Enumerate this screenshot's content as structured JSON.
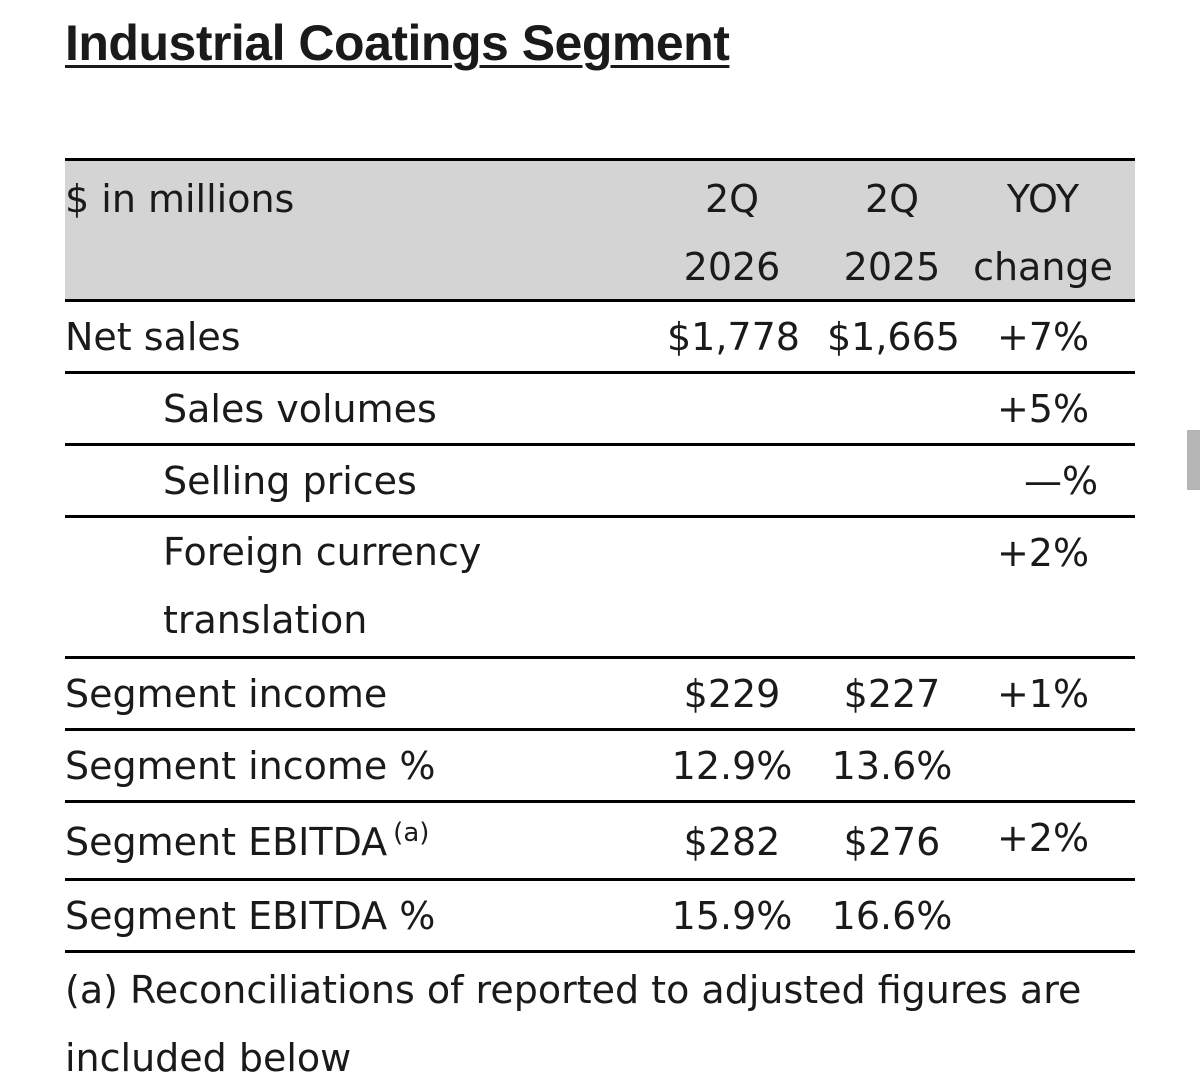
{
  "title": "Industrial Coatings Segment",
  "table": {
    "header": {
      "label": "$ in millions",
      "col1_line1": "2Q",
      "col1_line2": "2026",
      "col2_line1": "2Q",
      "col2_line2": "2025",
      "col3_line1": "YOY",
      "col3_line2": "change"
    },
    "rows": [
      {
        "label": "Net sales",
        "q2026": "$1,778",
        "q2025": "$1,665",
        "yoy": "+7%"
      },
      {
        "label": "Sales volumes",
        "q2026": "",
        "q2025": "",
        "yoy": "+5%"
      },
      {
        "label": "Selling prices",
        "q2026": "",
        "q2025": "",
        "yoy": "—%"
      },
      {
        "label_line1": "Foreign currency",
        "label_line2": "translation",
        "q2026": "",
        "q2025": "",
        "yoy": "+2%"
      },
      {
        "label": "Segment income",
        "q2026": "$229",
        "q2025": "$227",
        "yoy": "+1%"
      },
      {
        "label": "Segment income %",
        "q2026": "12.9%",
        "q2025": "13.6%",
        "yoy": ""
      },
      {
        "label": "Segment EBITDA",
        "sup": "(a)",
        "q2026": "$282",
        "q2025": "$276",
        "yoy": "+2%"
      },
      {
        "label": "Segment EBITDA %",
        "q2026": "15.9%",
        "q2025": "16.6%",
        "yoy": ""
      }
    ]
  },
  "footnote": "(a) Reconciliations of reported to adjusted figures are included below"
}
